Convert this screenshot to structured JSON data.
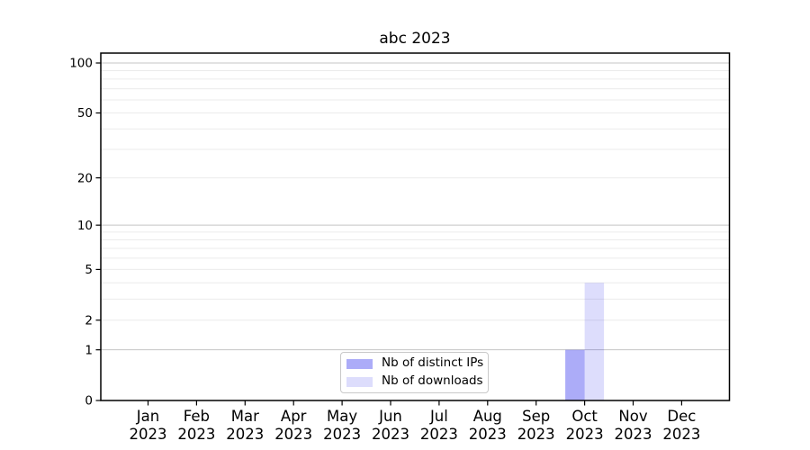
{
  "chart_data": {
    "type": "bar",
    "title": "abc 2023",
    "categories": [
      "Jan 2023",
      "Feb 2023",
      "Mar 2023",
      "Apr 2023",
      "May 2023",
      "Jun 2023",
      "Jul 2023",
      "Aug 2023",
      "Sep 2023",
      "Oct 2023",
      "Nov 2023",
      "Dec 2023"
    ],
    "series": [
      {
        "name": "Nb of distinct IPs",
        "color": "rgba(30,30,235,0.37)",
        "values": [
          0,
          0,
          0,
          0,
          0,
          0,
          0,
          0,
          0,
          1,
          0,
          0
        ]
      },
      {
        "name": "Nb of downloads",
        "color": "rgba(30,30,235,0.15)",
        "values": [
          0,
          0,
          0,
          0,
          0,
          0,
          0,
          0,
          0,
          4,
          0,
          0
        ]
      }
    ],
    "yscale": "log1p",
    "yticks": [
      0,
      1,
      2,
      5,
      10,
      20,
      50,
      100
    ],
    "ylim": [
      0,
      115
    ],
    "xlabel": "",
    "ylabel": "",
    "grid": {
      "on": true,
      "major_ticks": [
        1,
        10,
        100
      ],
      "minor_ticks": [
        2,
        3,
        4,
        5,
        6,
        7,
        8,
        9,
        20,
        30,
        40,
        50,
        60,
        70,
        80,
        90
      ],
      "major_color": "#c4c4c4",
      "minor_color": "#ebebeb"
    },
    "legend": {
      "position": "lower center"
    },
    "style": {
      "background": "#ffffff",
      "axis_color": "#000000",
      "text_color": "#000000"
    }
  }
}
